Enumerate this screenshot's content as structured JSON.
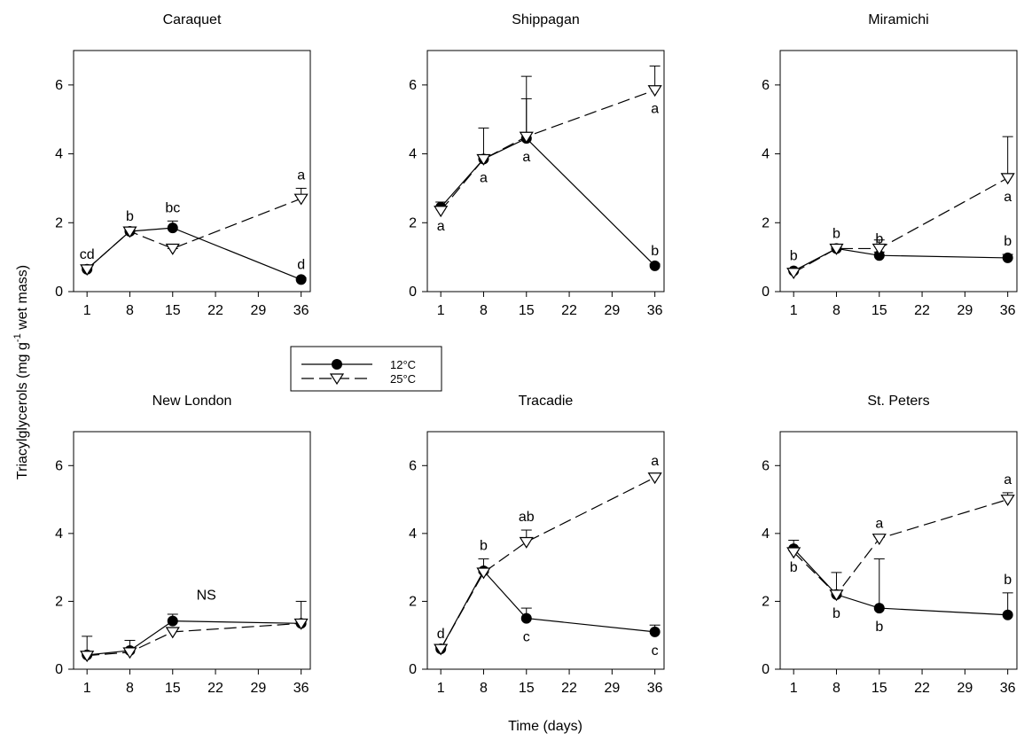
{
  "ylabel": {
    "before": "Triacylglycerols (mg g",
    "sup": "-1",
    "after": " wet mass)"
  },
  "xlabel": "Time (days)",
  "chart_data": [
    {
      "type": "line",
      "title": "Caraquet",
      "x": [
        1,
        8,
        15,
        36
      ],
      "xlim": [
        -1.2,
        37.5
      ],
      "xticks": [
        1,
        8,
        15,
        22,
        29,
        36
      ],
      "ylim": [
        0,
        7
      ],
      "yticks": [
        0,
        2,
        4,
        6
      ],
      "series": [
        {
          "name": "12°C",
          "color": "#000000",
          "marker": "circle",
          "dash": "solid",
          "values": [
            0.65,
            1.75,
            1.85,
            0.35
          ],
          "errors": [
            0.05,
            0.05,
            0.2,
            0.05
          ],
          "letters": [
            "cd",
            "b",
            "bc",
            "d"
          ]
        },
        {
          "name": "25°C",
          "color": "#000000",
          "marker": "triangle-down",
          "dash": "dashed",
          "values": [
            0.65,
            1.75,
            1.25,
            2.7
          ],
          "errors": [
            0.05,
            0.05,
            0,
            0.3
          ],
          "letters": [
            null,
            null,
            null,
            "a"
          ]
        }
      ]
    },
    {
      "type": "line",
      "title": "Shippagan",
      "x": [
        1,
        8,
        15,
        36
      ],
      "xlim": [
        -1.2,
        37.5
      ],
      "xticks": [
        1,
        8,
        15,
        22,
        29,
        36
      ],
      "ylim": [
        0,
        7
      ],
      "yticks": [
        0,
        2,
        4,
        6
      ],
      "series": [
        {
          "name": "12°C",
          "color": "#000000",
          "marker": "circle",
          "dash": "solid",
          "values": [
            2.45,
            3.85,
            4.45,
            0.75
          ],
          "errors": [
            0.15,
            0.9,
            1.15,
            0.05
          ],
          "letters": [
            "a",
            "a",
            "a",
            "b"
          ]
        },
        {
          "name": "25°C",
          "color": "#000000",
          "marker": "triangle-down",
          "dash": "dashed",
          "values": [
            2.35,
            3.85,
            4.5,
            5.85
          ],
          "errors": [
            0.1,
            0,
            1.75,
            0.7
          ],
          "letters": [
            null,
            null,
            null,
            "a"
          ]
        }
      ]
    },
    {
      "type": "line",
      "title": "Miramichi",
      "x": [
        1,
        8,
        15,
        36
      ],
      "xlim": [
        -1.2,
        37.5
      ],
      "xticks": [
        1,
        8,
        15,
        22,
        29,
        36
      ],
      "ylim": [
        0,
        7
      ],
      "yticks": [
        0,
        2,
        4,
        6
      ],
      "series": [
        {
          "name": "12°C",
          "color": "#000000",
          "marker": "circle",
          "dash": "solid",
          "values": [
            0.6,
            1.25,
            1.05,
            0.98
          ],
          "errors": [
            0.05,
            0.05,
            0.1,
            0.1
          ],
          "letters": [
            "b",
            "b",
            "b",
            "b"
          ]
        },
        {
          "name": "25°C",
          "color": "#000000",
          "marker": "triangle-down",
          "dash": "dashed",
          "values": [
            0.55,
            1.25,
            1.25,
            3.3
          ],
          "errors": [
            0.05,
            0.05,
            0.25,
            1.2
          ],
          "letters": [
            null,
            null,
            null,
            "a"
          ]
        }
      ]
    },
    {
      "type": "line",
      "title": "New London",
      "annotation": "NS",
      "x": [
        1,
        8,
        15,
        36
      ],
      "xlim": [
        -1.2,
        37.5
      ],
      "xticks": [
        1,
        8,
        15,
        22,
        29,
        36
      ],
      "ylim": [
        0,
        7
      ],
      "yticks": [
        0,
        2,
        4,
        6
      ],
      "series": [
        {
          "name": "12°C",
          "color": "#000000",
          "marker": "circle",
          "dash": "solid",
          "values": [
            0.42,
            0.55,
            1.42,
            1.35
          ],
          "errors": [
            0.55,
            0.3,
            0.2,
            0.65
          ]
        },
        {
          "name": "25°C",
          "color": "#000000",
          "marker": "triangle-down",
          "dash": "dashed",
          "values": [
            0.4,
            0.5,
            1.1,
            1.35
          ],
          "errors": [
            0.05,
            0.05,
            0.1,
            0.05
          ]
        }
      ]
    },
    {
      "type": "line",
      "title": "Tracadie",
      "x": [
        1,
        8,
        15,
        36
      ],
      "xlim": [
        -1.2,
        37.5
      ],
      "xticks": [
        1,
        8,
        15,
        22,
        29,
        36
      ],
      "ylim": [
        0,
        7
      ],
      "yticks": [
        0,
        2,
        4,
        6
      ],
      "series": [
        {
          "name": "12°C",
          "color": "#000000",
          "marker": "circle",
          "dash": "solid",
          "values": [
            0.6,
            2.9,
            1.5,
            1.1
          ],
          "errors": [
            0.05,
            0.35,
            0.3,
            0.2
          ],
          "letters": [
            "d",
            "b",
            "c",
            "c"
          ]
        },
        {
          "name": "25°C",
          "color": "#000000",
          "marker": "triangle-down",
          "dash": "dashed",
          "values": [
            0.6,
            2.85,
            3.75,
            5.65
          ],
          "errors": [
            0.05,
            0,
            0.35,
            0.1
          ],
          "letters": [
            null,
            null,
            "ab",
            "a"
          ]
        }
      ]
    },
    {
      "type": "line",
      "title": "St. Peters",
      "x": [
        1,
        8,
        15,
        36
      ],
      "xlim": [
        -1.2,
        37.5
      ],
      "xticks": [
        1,
        8,
        15,
        22,
        29,
        36
      ],
      "ylim": [
        0,
        7
      ],
      "yticks": [
        0,
        2,
        4,
        6
      ],
      "series": [
        {
          "name": "12°C",
          "color": "#000000",
          "marker": "circle",
          "dash": "solid",
          "values": [
            3.55,
            2.2,
            1.8,
            1.6
          ],
          "errors": [
            0.25,
            0.65,
            1.45,
            0.65
          ],
          "letters": [
            "b",
            "b",
            "b",
            "b"
          ]
        },
        {
          "name": "25°C",
          "color": "#000000",
          "marker": "triangle-down",
          "dash": "dashed",
          "values": [
            3.45,
            2.2,
            3.85,
            5.0
          ],
          "errors": [
            0.05,
            0,
            0.05,
            0.2
          ],
          "letters": [
            null,
            null,
            "a",
            "a"
          ]
        }
      ]
    }
  ]
}
